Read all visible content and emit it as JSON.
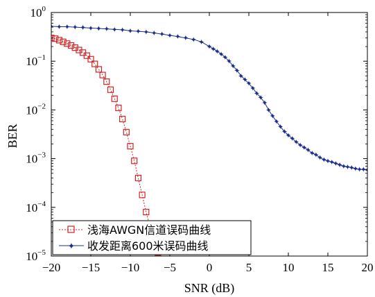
{
  "chart_data": {
    "type": "line",
    "xlabel": "SNR (dB)",
    "ylabel": "BER",
    "xlim": [
      -20,
      20
    ],
    "ylim": [
      1e-05,
      1
    ],
    "yscale": "log",
    "x_ticks": [
      "−20",
      "−15",
      "−10",
      "−5",
      "0",
      "5",
      "10",
      "15",
      "20"
    ],
    "y_ticks": [
      {
        "base": "10",
        "exp": "−5",
        "value": 1e-05
      },
      {
        "base": "10",
        "exp": "−4",
        "value": 0.0001
      },
      {
        "base": "10",
        "exp": "−3",
        "value": 0.001
      },
      {
        "base": "10",
        "exp": "−2",
        "value": 0.01
      },
      {
        "base": "10",
        "exp": "−1",
        "value": 0.1
      },
      {
        "base": "10",
        "exp": "0",
        "value": 1
      }
    ],
    "grid": false,
    "legend_position": "bottom-left",
    "series": [
      {
        "name": "浅海AWGN信道误码曲线",
        "color": "#d82020",
        "marker": "square",
        "x": [
          -20,
          -19.5,
          -19,
          -18.5,
          -18,
          -17.5,
          -17,
          -16.5,
          -16,
          -15.5,
          -15,
          -14.5,
          -14,
          -13.5,
          -13,
          -12.5,
          -12,
          -11.5,
          -11,
          -10.5,
          -10,
          -9.5,
          -9,
          -8.5,
          -8,
          -7.5,
          -7,
          -6.5,
          -6
        ],
        "y": [
          0.3,
          0.29,
          0.27,
          0.25,
          0.23,
          0.21,
          0.19,
          0.17,
          0.15,
          0.13,
          0.11,
          0.088,
          0.068,
          0.052,
          0.038,
          0.026,
          0.017,
          0.011,
          0.0065,
          0.0035,
          0.0018,
          0.0009,
          0.0004,
          0.00018,
          8e-05,
          4e-05,
          1.8e-05,
          9e-06,
          4e-06
        ]
      },
      {
        "name": "收发距离600米误码曲线",
        "color": "#1a2f8a",
        "marker": "star",
        "x": [
          -20,
          -19,
          -18,
          -17,
          -16,
          -15,
          -14,
          -13,
          -12,
          -11,
          -10,
          -9,
          -8,
          -7,
          -6,
          -5,
          -4,
          -3,
          -2,
          -1,
          0,
          0.5,
          1,
          1.5,
          2,
          2.5,
          3,
          3.5,
          4,
          4.5,
          5,
          5.5,
          6,
          6.5,
          7,
          7.5,
          8,
          8.5,
          9,
          9.5,
          10,
          10.5,
          11,
          11.5,
          12,
          12.5,
          13,
          13.5,
          14,
          14.5,
          15,
          15.5,
          16,
          16.5,
          17,
          17.5,
          18,
          18.5,
          19,
          19.5,
          20
        ],
        "y": [
          0.52,
          0.51,
          0.51,
          0.5,
          0.49,
          0.48,
          0.47,
          0.46,
          0.45,
          0.44,
          0.42,
          0.41,
          0.4,
          0.38,
          0.36,
          0.34,
          0.32,
          0.3,
          0.28,
          0.25,
          0.2,
          0.18,
          0.16,
          0.14,
          0.12,
          0.1,
          0.08,
          0.065,
          0.05,
          0.042,
          0.035,
          0.028,
          0.022,
          0.018,
          0.014,
          0.01,
          0.0075,
          0.0058,
          0.0045,
          0.0036,
          0.003,
          0.0026,
          0.0022,
          0.0019,
          0.0017,
          0.0015,
          0.0013,
          0.0012,
          0.00105,
          0.00095,
          0.0009,
          0.00085,
          0.0008,
          0.00075,
          0.0007,
          0.00068,
          0.00065,
          0.00062,
          0.0006,
          0.0006,
          0.00058
        ]
      }
    ]
  }
}
